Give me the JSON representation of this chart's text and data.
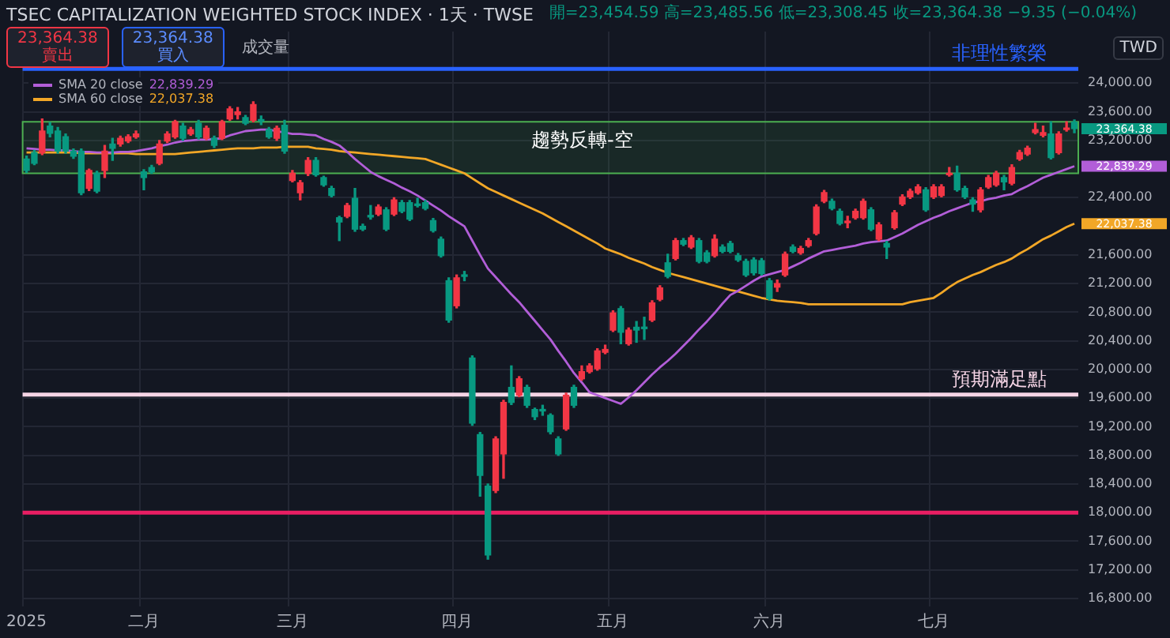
{
  "chart_data": {
    "type": "candlestick",
    "title": "TSEC CAPITALIZATION WEIGHTED STOCK INDEX · 1天 · TWSE",
    "subtitle": "開=23,454.59 高=23,485.56 低=23,308.45 收=23,364.38 −9.35 (−0.04%)",
    "categories": [
      "2025",
      null,
      null,
      null,
      null,
      null,
      null,
      null,
      null,
      null,
      null,
      null,
      null,
      null,
      null,
      "二月",
      null,
      null,
      null,
      null,
      null,
      null,
      null,
      null,
      null,
      null,
      null,
      null,
      null,
      null,
      null,
      null,
      null,
      null,
      "三月",
      null,
      null,
      null,
      null,
      null,
      null,
      null,
      null,
      null,
      null,
      null,
      null,
      null,
      null,
      null,
      null,
      null,
      null,
      null,
      null,
      "四月",
      null,
      null,
      null,
      null,
      null,
      null,
      null,
      null,
      null,
      null,
      null,
      null,
      null,
      null,
      null,
      null,
      null,
      null,
      null,
      "五月",
      null,
      null,
      null,
      null,
      null,
      null,
      null,
      null,
      null,
      null,
      null,
      null,
      null,
      null,
      null,
      null,
      null,
      null,
      null,
      "六月",
      null,
      null,
      null,
      null,
      null,
      null,
      null,
      null,
      null,
      null,
      null,
      null,
      null,
      null,
      null,
      null,
      null,
      null,
      null,
      null,
      "七月",
      null,
      null,
      null,
      null,
      null,
      null,
      null,
      null,
      null,
      null,
      null,
      null,
      null,
      null,
      null,
      null,
      null,
      null
    ],
    "ohlc": [
      [
        22940,
        22980,
        22750,
        22780
      ],
      [
        23030,
        23060,
        22860,
        22880
      ],
      [
        23030,
        23500,
        23000,
        23330
      ],
      [
        23400,
        23450,
        23250,
        23300
      ],
      [
        23330,
        23380,
        23020,
        23050
      ],
      [
        23250,
        23290,
        23020,
        23050
      ],
      [
        23050,
        23080,
        22950,
        22980
      ],
      [
        23050,
        23080,
        22440,
        22470
      ],
      [
        22530,
        22800,
        22500,
        22780
      ],
      [
        22740,
        22770,
        22470,
        22490
      ],
      [
        22780,
        23130,
        22680,
        23050
      ],
      [
        23150,
        23230,
        22920,
        23090
      ],
      [
        23150,
        23260,
        23120,
        23230
      ],
      [
        23190,
        23280,
        23170,
        23250
      ],
      [
        23250,
        23330,
        23230,
        23290
      ],
      [
        22760,
        22790,
        22510,
        22680
      ],
      [
        22820,
        22850,
        22740,
        22760
      ],
      [
        22880,
        23200,
        22860,
        23150
      ],
      [
        23190,
        23320,
        23170,
        23290
      ],
      [
        23250,
        23480,
        23230,
        23460
      ],
      [
        23400,
        23440,
        23200,
        23230
      ],
      [
        23290,
        23380,
        23270,
        23350
      ],
      [
        23440,
        23480,
        23220,
        23250
      ],
      [
        23230,
        23400,
        23210,
        23370
      ],
      [
        23230,
        23260,
        23100,
        23130
      ],
      [
        23230,
        23480,
        23210,
        23460
      ],
      [
        23500,
        23670,
        23480,
        23640
      ],
      [
        23560,
        23660,
        23500,
        23600
      ],
      [
        23520,
        23550,
        23420,
        23440
      ],
      [
        23480,
        23740,
        23460,
        23700
      ],
      [
        23480,
        23540,
        23420,
        23470
      ],
      [
        23350,
        23380,
        23230,
        23250
      ],
      [
        23230,
        23400,
        23200,
        23370
      ],
      [
        23410,
        23480,
        23020,
        23050
      ],
      [
        22640,
        22780,
        22620,
        22740
      ],
      [
        22470,
        22640,
        22370,
        22610
      ],
      [
        22740,
        22960,
        22710,
        22920
      ],
      [
        22920,
        22960,
        22700,
        22720
      ],
      [
        22680,
        22700,
        22560,
        22580
      ],
      [
        22530,
        22560,
        22410,
        22430
      ],
      [
        22120,
        22140,
        21800,
        22060
      ],
      [
        22140,
        22320,
        22120,
        22290
      ],
      [
        22390,
        22530,
        21930,
        21960
      ],
      [
        22000,
        22030,
        21940,
        21960
      ],
      [
        22140,
        22290,
        22100,
        22130
      ],
      [
        22170,
        22300,
        22150,
        22270
      ],
      [
        22230,
        22260,
        21940,
        21960
      ],
      [
        22170,
        22400,
        22150,
        22370
      ],
      [
        22330,
        22360,
        22190,
        22210
      ],
      [
        22330,
        22360,
        22080,
        22100
      ],
      [
        22310,
        22390,
        22270,
        22290
      ],
      [
        22330,
        22360,
        22230,
        22250
      ],
      [
        22080,
        22110,
        21920,
        21940
      ],
      [
        21820,
        21850,
        21570,
        21590
      ],
      [
        21240,
        21280,
        20660,
        20690
      ],
      [
        20890,
        21320,
        20860,
        21280
      ],
      [
        21320,
        21370,
        21240,
        21300
      ],
      [
        20160,
        20190,
        19220,
        19250
      ],
      [
        19090,
        19120,
        18230,
        18520
      ],
      [
        18370,
        18400,
        17350,
        17410
      ],
      [
        18310,
        19060,
        18280,
        19030
      ],
      [
        18820,
        19570,
        18480,
        19540
      ],
      [
        19750,
        20050,
        19510,
        19540
      ],
      [
        19640,
        19900,
        19620,
        19870
      ],
      [
        19750,
        19780,
        19470,
        19500
      ],
      [
        19440,
        19460,
        19300,
        19340
      ],
      [
        19440,
        19500,
        19360,
        19420
      ],
      [
        19360,
        19380,
        19100,
        19130
      ],
      [
        19030,
        19060,
        18800,
        18820
      ],
      [
        19170,
        19670,
        19150,
        19640
      ],
      [
        19750,
        19780,
        19470,
        19500
      ],
      [
        19870,
        20050,
        19850,
        19970
      ],
      [
        19970,
        20080,
        19950,
        20050
      ],
      [
        20010,
        20290,
        19990,
        20260
      ],
      [
        20240,
        20340,
        20220,
        20280
      ],
      [
        20550,
        20820,
        20530,
        20790
      ],
      [
        20850,
        20880,
        20360,
        20520
      ],
      [
        20360,
        20580,
        20340,
        20550
      ],
      [
        20590,
        20670,
        20380,
        20550
      ],
      [
        20590,
        20730,
        20420,
        20570
      ],
      [
        20690,
        20960,
        20670,
        20930
      ],
      [
        20980,
        21170,
        20960,
        21140
      ],
      [
        21490,
        21610,
        21280,
        21300
      ],
      [
        21550,
        21830,
        21530,
        21800
      ],
      [
        21800,
        21830,
        21730,
        21750
      ],
      [
        21710,
        21870,
        21690,
        21840
      ],
      [
        21800,
        21830,
        21490,
        21510
      ],
      [
        21630,
        21660,
        21490,
        21510
      ],
      [
        21590,
        21880,
        21570,
        21820
      ],
      [
        21710,
        21740,
        21630,
        21650
      ],
      [
        21760,
        21790,
        21630,
        21650
      ],
      [
        21590,
        21620,
        21510,
        21530
      ],
      [
        21510,
        21540,
        21300,
        21320
      ],
      [
        21530,
        21560,
        21320,
        21350
      ],
      [
        21520,
        21550,
        21320,
        21340
      ],
      [
        21240,
        21270,
        20970,
        20990
      ],
      [
        21150,
        21250,
        21090,
        21200
      ],
      [
        21320,
        21640,
        21300,
        21610
      ],
      [
        21710,
        21740,
        21630,
        21650
      ],
      [
        21630,
        21720,
        21610,
        21690
      ],
      [
        21730,
        21830,
        21710,
        21800
      ],
      [
        21900,
        22300,
        21880,
        22270
      ],
      [
        22350,
        22500,
        22330,
        22470
      ],
      [
        22350,
        22380,
        22230,
        22250
      ],
      [
        22210,
        22240,
        22020,
        22040
      ],
      [
        22050,
        22140,
        21980,
        22070
      ],
      [
        22120,
        22240,
        22100,
        22210
      ],
      [
        22120,
        22380,
        22100,
        22350
      ],
      [
        22230,
        22260,
        21940,
        21960
      ],
      [
        21820,
        22050,
        21800,
        22020
      ],
      [
        21760,
        21790,
        21550,
        21710
      ],
      [
        21980,
        22220,
        21960,
        22190
      ],
      [
        22310,
        22440,
        22290,
        22410
      ],
      [
        22410,
        22520,
        22390,
        22490
      ],
      [
        22470,
        22580,
        22450,
        22550
      ],
      [
        22510,
        22540,
        22210,
        22230
      ],
      [
        22410,
        22580,
        22390,
        22550
      ],
      [
        22430,
        22580,
        22410,
        22550
      ],
      [
        22720,
        22820,
        22700,
        22740
      ],
      [
        22740,
        22840,
        22490,
        22510
      ],
      [
        22530,
        22560,
        22390,
        22410
      ],
      [
        22370,
        22400,
        22210,
        22310
      ],
      [
        22230,
        22540,
        22200,
        22510
      ],
      [
        22550,
        22710,
        22530,
        22680
      ],
      [
        22580,
        22770,
        22560,
        22740
      ],
      [
        22680,
        22710,
        22510,
        22620
      ],
      [
        22600,
        22860,
        22580,
        22820
      ],
      [
        22940,
        23060,
        22920,
        23030
      ],
      [
        23010,
        23120,
        22990,
        23090
      ],
      [
        23310,
        23440,
        23290,
        23350
      ],
      [
        23270,
        23400,
        23250,
        23310
      ],
      [
        23290,
        23460,
        22940,
        22960
      ],
      [
        23030,
        23320,
        23010,
        23290
      ],
      [
        23350,
        23460,
        23330,
        23370
      ],
      [
        23454.59,
        23485.56,
        23308.45,
        23364.38
      ]
    ],
    "series": [
      {
        "name": "SMA 20 close",
        "type": "line",
        "color": "#b25ed8",
        "values": [
          23090,
          23080,
          23070,
          23070,
          23060,
          23060,
          23050,
          23040,
          23040,
          23030,
          23030,
          23030,
          23040,
          23040,
          23050,
          23070,
          23090,
          23120,
          23140,
          23170,
          23190,
          23200,
          23210,
          23210,
          23220,
          23230,
          23270,
          23300,
          23330,
          23340,
          23350,
          23350,
          23330,
          23310,
          23290,
          23290,
          23280,
          23270,
          23220,
          23180,
          23130,
          23040,
          22940,
          22850,
          22760,
          22700,
          22650,
          22600,
          22540,
          22490,
          22430,
          22360,
          22290,
          22220,
          22140,
          22070,
          22000,
          21800,
          21600,
          21410,
          21290,
          21170,
          21050,
          20940,
          20810,
          20680,
          20550,
          20420,
          20260,
          20110,
          19950,
          19820,
          19680,
          19640,
          19600,
          19560,
          19520,
          19610,
          19710,
          19820,
          19930,
          20030,
          20120,
          20220,
          20330,
          20440,
          20560,
          20670,
          20790,
          20920,
          21040,
          21100,
          21170,
          21240,
          21300,
          21330,
          21360,
          21390,
          21440,
          21490,
          21550,
          21600,
          21650,
          21670,
          21690,
          21710,
          21730,
          21760,
          21780,
          21790,
          21800,
          21850,
          21900,
          21960,
          22020,
          22070,
          22120,
          22160,
          22210,
          22250,
          22290,
          22330,
          22350,
          22380,
          22400,
          22430,
          22450,
          22510,
          22560,
          22620,
          22680,
          22720,
          22760,
          22800,
          22839.29
        ]
      },
      {
        "name": "SMA 60 close",
        "type": "line",
        "color": "#f2a727",
        "values": [
          23030,
          23030,
          23030,
          23030,
          23030,
          23030,
          23030,
          23020,
          23020,
          23020,
          23020,
          23020,
          23020,
          23020,
          23010,
          23010,
          23010,
          23010,
          23010,
          23010,
          23020,
          23030,
          23040,
          23050,
          23060,
          23070,
          23080,
          23090,
          23090,
          23090,
          23100,
          23100,
          23100,
          23110,
          23110,
          23110,
          23110,
          23090,
          23080,
          23070,
          23050,
          23040,
          23030,
          23020,
          23010,
          23000,
          22990,
          22980,
          22970,
          22960,
          22950,
          22940,
          22900,
          22860,
          22820,
          22780,
          22740,
          22670,
          22600,
          22530,
          22480,
          22430,
          22380,
          22330,
          22280,
          22230,
          22180,
          22120,
          22060,
          22000,
          21940,
          21880,
          21820,
          21760,
          21690,
          21650,
          21610,
          21560,
          21520,
          21480,
          21430,
          21390,
          21350,
          21320,
          21290,
          21260,
          21230,
          21200,
          21170,
          21140,
          21110,
          21090,
          21060,
          21030,
          21000,
          20980,
          20960,
          20950,
          20940,
          20930,
          20910,
          20910,
          20910,
          20910,
          20910,
          20910,
          20910,
          20910,
          20910,
          20910,
          20910,
          20910,
          20910,
          20940,
          20960,
          20980,
          21000,
          21070,
          21150,
          21220,
          21270,
          21320,
          21360,
          21410,
          21460,
          21500,
          21550,
          21620,
          21680,
          21750,
          21820,
          21870,
          21930,
          21990,
          22037.38
        ]
      }
    ],
    "ylim": [
      16690,
      24720
    ],
    "yticks": [
      {
        "value": 16800,
        "label": "16,800.00"
      },
      {
        "value": 17200,
        "label": "17,200.00"
      },
      {
        "value": 17600,
        "label": "17,600.00"
      },
      {
        "value": 18000,
        "label": "18,000.00"
      },
      {
        "value": 18400,
        "label": "18,400.00"
      },
      {
        "value": 18800,
        "label": "18,800.00"
      },
      {
        "value": 19200,
        "label": "19,200.00"
      },
      {
        "value": 19600,
        "label": "19,600.00"
      },
      {
        "value": 20000,
        "label": "20,000.00"
      },
      {
        "value": 20400,
        "label": "20,400.00"
      },
      {
        "value": 20800,
        "label": "20,800.00"
      },
      {
        "value": 21200,
        "label": "21,200.00"
      },
      {
        "value": 21600,
        "label": "21,600.00"
      },
      {
        "value": 22400,
        "label": "22,400.00"
      },
      {
        "value": 23200,
        "label": "23,200.00"
      },
      {
        "value": 23600,
        "label": "23,600.00"
      },
      {
        "value": 24000,
        "label": "24,000.00"
      }
    ],
    "ref_lines": [
      {
        "axis": "y",
        "value": 24200,
        "label": "非理性繁榮",
        "color": "#2962ff"
      },
      {
        "axis": "y",
        "value": 19650,
        "label": "預期滿足點",
        "color": "#f6d5e6"
      },
      {
        "axis": "y",
        "value": 18000,
        "color": "#e91e63"
      }
    ],
    "bands": [
      {
        "axis": "y",
        "from": 22740,
        "to": 23460,
        "label": "趨勢反轉-空",
        "color": "#4caf50"
      }
    ],
    "annotations": [
      "23,364.38\n賣出",
      "23,364.38\n買入",
      "成交量",
      "TWD",
      "23,364.38",
      "22,839.29",
      "22,037.38",
      "22,839.29",
      "22,037.38"
    ],
    "grid": true,
    "legend": "top left",
    "marker": "none"
  }
}
